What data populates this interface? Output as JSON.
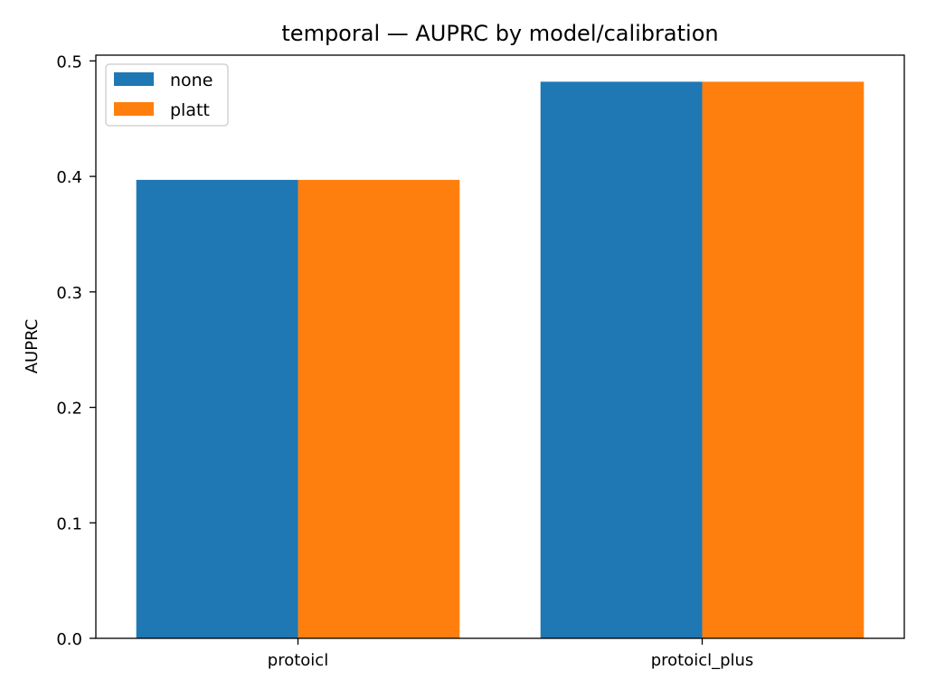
{
  "chart_data": {
    "type": "bar",
    "title": "temporal — AUPRC by model/calibration",
    "xlabel": "",
    "ylabel": "AUPRC",
    "categories": [
      "protoicl",
      "protoicl_plus"
    ],
    "series": [
      {
        "name": "none",
        "color": "#1f77b4",
        "values": [
          0.397,
          0.482
        ]
      },
      {
        "name": "platt",
        "color": "#ff7f0e",
        "values": [
          0.397,
          0.482
        ]
      }
    ],
    "ylim": [
      0,
      0.505
    ],
    "yticks": [
      {
        "value": 0.0,
        "label": "0.0"
      },
      {
        "value": 0.1,
        "label": "0.1"
      },
      {
        "value": 0.2,
        "label": "0.2"
      },
      {
        "value": 0.3,
        "label": "0.3"
      },
      {
        "value": 0.4,
        "label": "0.4"
      },
      {
        "value": 0.5,
        "label": "0.5"
      }
    ],
    "grid": false,
    "legend_position": "top-left"
  }
}
